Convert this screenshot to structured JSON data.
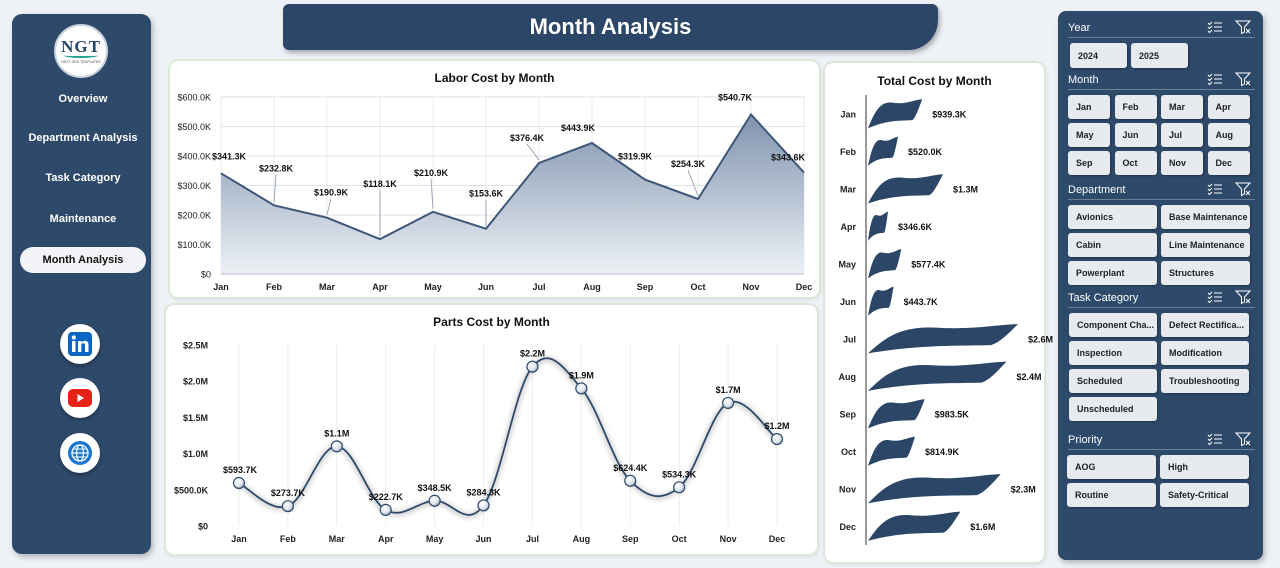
{
  "logo": {
    "text": "NGT",
    "subtitle": "NEXT GEN TEMPLATES"
  },
  "title": "Month Analysis",
  "nav": [
    {
      "label": "Overview",
      "name": "nav-overview"
    },
    {
      "label": "Department Analysis",
      "name": "nav-department-analysis"
    },
    {
      "label": "Task Category",
      "name": "nav-task-category"
    },
    {
      "label": "Maintenance",
      "name": "nav-maintenance"
    },
    {
      "label": "Month Analysis",
      "name": "nav-month-analysis",
      "active": true
    }
  ],
  "social": [
    {
      "icon": "linkedin-icon",
      "color": "#0a66c2"
    },
    {
      "icon": "youtube-icon",
      "color": "#e62117"
    },
    {
      "icon": "globe-icon",
      "color": "#1976d2"
    }
  ],
  "chart_data": [
    {
      "type": "area",
      "title": "Labor Cost by Month",
      "categories": [
        "Jan",
        "Feb",
        "Mar",
        "Apr",
        "May",
        "Jun",
        "Jul",
        "Aug",
        "Sep",
        "Oct",
        "Nov",
        "Dec"
      ],
      "values": [
        341.3,
        232.8,
        190.9,
        118.1,
        210.9,
        153.6,
        376.4,
        443.9,
        319.9,
        254.3,
        540.7,
        343.6
      ],
      "data_labels": [
        "$341.3K",
        "$232.8K",
        "$190.9K",
        "$118.1K",
        "$210.9K",
        "$153.6K",
        "$376.4K",
        "$443.9K",
        "$319.9K",
        "$254.3K",
        "$540.7K",
        "$343.6K"
      ],
      "unit": "$K",
      "ylim": [
        0,
        600
      ],
      "yticks": [
        "$0",
        "$100.0K",
        "$200.0K",
        "$300.0K",
        "$400.0K",
        "$500.0K",
        "$600.0K"
      ],
      "grid": true,
      "colors": {
        "line": "#3e5678",
        "fill_top": "#7f93ae",
        "fill_bottom": "#edf1f6"
      }
    },
    {
      "type": "line",
      "title": "Parts Cost by Month",
      "categories": [
        "Jan",
        "Feb",
        "Mar",
        "Apr",
        "May",
        "Jun",
        "Jul",
        "Aug",
        "Sep",
        "Oct",
        "Nov",
        "Dec"
      ],
      "values": [
        593.7,
        273.7,
        1100,
        222.7,
        348.5,
        284.3,
        2200,
        1900,
        624.4,
        534.3,
        1700,
        1200
      ],
      "data_labels": [
        "$593.7K",
        "$273.7K",
        "$1.1M",
        "$222.7K",
        "$348.5K",
        "$284.3K",
        "$2.2M",
        "$1.9M",
        "$624.4K",
        "$534.3K",
        "$1.7M",
        "$1.2M"
      ],
      "unit": "$K",
      "ylim": [
        0,
        2500
      ],
      "yticks": [
        "$0",
        "$500.0K",
        "$1.0M",
        "$1.5M",
        "$2.0M",
        "$2.5M"
      ],
      "smooth": true,
      "colors": {
        "line": "#2e4a6b"
      }
    },
    {
      "type": "bar",
      "orientation": "horizontal",
      "title": "Total Cost by Month",
      "categories": [
        "Jan",
        "Feb",
        "Mar",
        "Apr",
        "May",
        "Jun",
        "Jul",
        "Aug",
        "Sep",
        "Oct",
        "Nov",
        "Dec"
      ],
      "values": [
        939.3,
        520.0,
        1300,
        346.6,
        577.4,
        443.7,
        2600,
        2400,
        983.5,
        814.9,
        2300,
        1600
      ],
      "data_labels": [
        "$939.3K",
        "$520.0K",
        "$1.3M",
        "$346.6K",
        "$577.4K",
        "$443.7K",
        "$2.6M",
        "$2.4M",
        "$983.5K",
        "$814.9K",
        "$2.3M",
        "$1.6M"
      ],
      "unit": "$K",
      "colors": {
        "bar": "#2b4667"
      }
    }
  ],
  "slicers": {
    "year": {
      "title": "Year",
      "items": [
        "2024",
        "2025"
      ]
    },
    "month": {
      "title": "Month",
      "items": [
        "Jan",
        "Feb",
        "Mar",
        "Apr",
        "May",
        "Jun",
        "Jul",
        "Aug",
        "Sep",
        "Oct",
        "Nov",
        "Dec"
      ]
    },
    "department": {
      "title": "Department",
      "items": [
        "Avionics",
        "Base Maintenance",
        "Cabin",
        "Line Maintenance",
        "Powerplant",
        "Structures"
      ]
    },
    "task_category": {
      "title": "Task Category",
      "items": [
        "Component Cha...",
        "Defect Rectifica...",
        "Inspection",
        "Modification",
        "Scheduled",
        "Troubleshooting",
        "Unscheduled"
      ]
    },
    "priority": {
      "title": "Priority",
      "items": [
        "AOG",
        "High",
        "Routine",
        "Safety-Critical"
      ]
    }
  }
}
